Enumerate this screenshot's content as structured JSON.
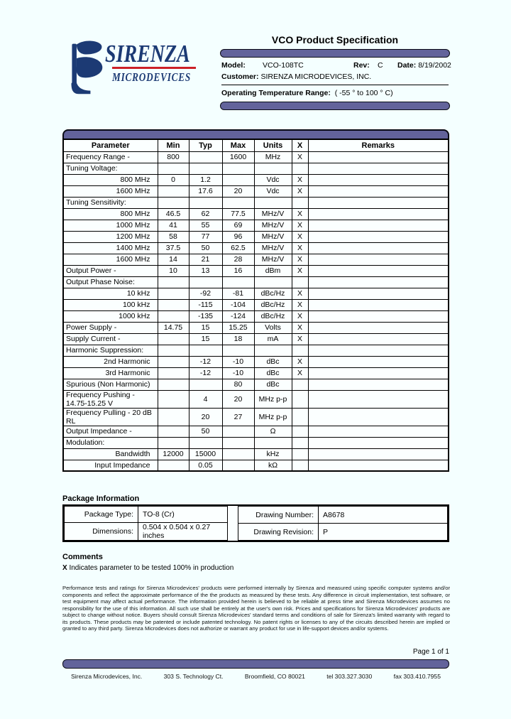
{
  "page": {
    "background": "#F4FFFF",
    "accent_bar_color": "#63639B",
    "logo_navy": "#1C3A74",
    "logo_red": "#CC2027"
  },
  "logo": {
    "name": "SIRENZA",
    "subname": "MICRODEVICES"
  },
  "header": {
    "title": "VCO Product Specification",
    "model_label": "Model:",
    "model": "VCO-108TC",
    "rev_label": "Rev:",
    "rev": "C",
    "date_label": "Date:",
    "date": "8/19/2002",
    "customer_label": "Customer:",
    "customer": "SIRENZA MICRODEVICES, INC.",
    "otr_label": "Operating Temperature Range:",
    "otr": "( -55 ° to 100 ° C)"
  },
  "spec_table": {
    "headers": [
      "Parameter",
      "Min",
      "Typ",
      "Max",
      "Units",
      "X",
      "Remarks"
    ],
    "rows": [
      {
        "param": "Frequency Range -",
        "indent": false,
        "min": "800",
        "typ": "",
        "max": "1600",
        "units": "MHz",
        "x": "X",
        "remarks": ""
      },
      {
        "param": "Tuning Voltage:",
        "indent": false,
        "min": "",
        "typ": "",
        "max": "",
        "units": "",
        "x": "",
        "remarks": ""
      },
      {
        "param": "800 MHz",
        "indent": true,
        "min": "0",
        "typ": "1.2",
        "max": "",
        "units": "Vdc",
        "x": "X",
        "remarks": ""
      },
      {
        "param": "1600 MHz",
        "indent": true,
        "min": "",
        "typ": "17.6",
        "max": "20",
        "units": "Vdc",
        "x": "X",
        "remarks": ""
      },
      {
        "param": "Tuning Sensitivity:",
        "indent": false,
        "min": "",
        "typ": "",
        "max": "",
        "units": "",
        "x": "",
        "remarks": ""
      },
      {
        "param": "800 MHz",
        "indent": true,
        "min": "46.5",
        "typ": "62",
        "max": "77.5",
        "units": "MHz/V",
        "x": "X",
        "remarks": ""
      },
      {
        "param": "1000 MHz",
        "indent": true,
        "min": "41",
        "typ": "55",
        "max": "69",
        "units": "MHz/V",
        "x": "X",
        "remarks": ""
      },
      {
        "param": "1200 MHz",
        "indent": true,
        "min": "58",
        "typ": "77",
        "max": "96",
        "units": "MHz/V",
        "x": "X",
        "remarks": ""
      },
      {
        "param": "1400 MHz",
        "indent": true,
        "min": "37.5",
        "typ": "50",
        "max": "62.5",
        "units": "MHz/V",
        "x": "X",
        "remarks": ""
      },
      {
        "param": "1600 MHz",
        "indent": true,
        "min": "14",
        "typ": "21",
        "max": "28",
        "units": "MHz/V",
        "x": "X",
        "remarks": ""
      },
      {
        "param": "Output Power -",
        "indent": false,
        "min": "10",
        "typ": "13",
        "max": "16",
        "units": "dBm",
        "x": "X",
        "remarks": ""
      },
      {
        "param": "Output Phase Noise:",
        "indent": false,
        "min": "",
        "typ": "",
        "max": "",
        "units": "",
        "x": "",
        "remarks": ""
      },
      {
        "param": "10 kHz",
        "indent": true,
        "min": "",
        "typ": "-92",
        "max": "-81",
        "units": "dBc/Hz",
        "x": "X",
        "remarks": ""
      },
      {
        "param": "100 kHz",
        "indent": true,
        "min": "",
        "typ": "-115",
        "max": "-104",
        "units": "dBc/Hz",
        "x": "X",
        "remarks": ""
      },
      {
        "param": "1000 kHz",
        "indent": true,
        "min": "",
        "typ": "-135",
        "max": "-124",
        "units": "dBc/Hz",
        "x": "X",
        "remarks": ""
      },
      {
        "param": "Power Supply -",
        "indent": false,
        "min": "14.75",
        "typ": "15",
        "max": "15.25",
        "units": "Volts",
        "x": "X",
        "remarks": ""
      },
      {
        "param": "Supply Current -",
        "indent": false,
        "min": "",
        "typ": "15",
        "max": "18",
        "units": "mA",
        "x": "X",
        "remarks": ""
      },
      {
        "param": "Harmonic Suppression:",
        "indent": false,
        "min": "",
        "typ": "",
        "max": "",
        "units": "",
        "x": "",
        "remarks": ""
      },
      {
        "param": "2nd Harmonic",
        "indent": true,
        "min": "",
        "typ": "-12",
        "max": "-10",
        "units": "dBc",
        "x": "X",
        "remarks": ""
      },
      {
        "param": "3rd Harmonic",
        "indent": true,
        "min": "",
        "typ": "-12",
        "max": "-10",
        "units": "dBc",
        "x": "X",
        "remarks": ""
      },
      {
        "param": "Spurious (Non Harmonic)",
        "indent": false,
        "min": "",
        "typ": "",
        "max": "80",
        "units": "dBc",
        "x": "",
        "remarks": ""
      },
      {
        "param": "Frequency Pushing - 14.75-15.25 V",
        "indent": false,
        "min": "",
        "typ": "4",
        "max": "20",
        "units": "MHz p-p",
        "x": "",
        "remarks": ""
      },
      {
        "param": "Frequency Pulling - 20 dB RL",
        "indent": false,
        "min": "",
        "typ": "20",
        "max": "27",
        "units": "MHz p-p",
        "x": "",
        "remarks": ""
      },
      {
        "param": "Output Impedance -",
        "indent": false,
        "min": "",
        "typ": "50",
        "max": "",
        "units": "Ω",
        "x": "",
        "remarks": ""
      },
      {
        "param": "Modulation:",
        "indent": false,
        "min": "",
        "typ": "",
        "max": "",
        "units": "",
        "x": "",
        "remarks": ""
      },
      {
        "param": "Bandwidth",
        "indent": true,
        "min": "12000",
        "typ": "15000",
        "max": "",
        "units": "kHz",
        "x": "",
        "remarks": ""
      },
      {
        "param": "Input Impedance",
        "indent": true,
        "min": "",
        "typ": "0.05",
        "max": "",
        "units": "kΩ",
        "x": "",
        "remarks": ""
      }
    ]
  },
  "package_info": {
    "heading": "Package Information",
    "rows": [
      {
        "label1": "Package Type:",
        "value1": "TO-8 (Cr)",
        "label2": "Drawing Number:",
        "value2": "A8678"
      },
      {
        "label1": "Dimensions:",
        "value1": "0.504 x 0.504 x 0.27 inches",
        "label2": "Drawing Revision:",
        "value2": "P"
      }
    ]
  },
  "comments": {
    "heading": "Comments",
    "x_prefix": "X",
    "note": " Indicates parameter to be tested 100% in production"
  },
  "legal": "Performance tests and ratings for Sirenza Microdevices' products were performed internally by Sirenza and measured using specific computer systems and/or components and reflect the approximate performance of the the products as measured by these tests. Any difference in circuit implementation, test software, or test equipment may affect actual performance. The information provided herein is believed to be reliable at press time and Sirenza Microdevices assumes no responsibility for the use of this information. All such use shall be entirely at the user's own risk. Prices and specifications for Sirenza Microdevices' products are subject to change without notice. Buyers should consult Sirenza Microdevices' standard terms and conditions of sale for Sirenza's limited warranty with regard to its products. These products may be patented or include patented technology. No patent rights or licenses to any of the circuits described herein are implied or granted to any third party. Sirenza Microdevices does not authorize or warrant any product for use in life-support devices and/or systems.",
  "page_number": "Page 1 of 1",
  "footer": {
    "company": "Sirenza Microdevices, Inc.",
    "address": "303 S. Technology Ct.",
    "city": "Broomfield, CO 80021",
    "tel": "tel 303.327.3030",
    "fax": "fax 303.410.7955"
  }
}
